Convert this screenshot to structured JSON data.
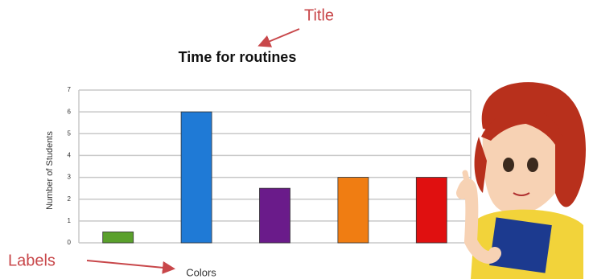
{
  "chart_data": {
    "type": "bar",
    "title": "Time for routines",
    "y_label": "Number of Students",
    "x_label": "Colors",
    "values": [
      0.5,
      6,
      2.5,
      3,
      3
    ],
    "colors": [
      "#5aa02c",
      "#1f7ad6",
      "#6a1b8a",
      "#f07d12",
      "#e01010"
    ],
    "ylim": [
      0,
      7
    ],
    "yticks": [
      0,
      1,
      2,
      3,
      4,
      5,
      6,
      7
    ],
    "grid": true,
    "annotations": [
      "Title",
      "Labels"
    ]
  }
}
